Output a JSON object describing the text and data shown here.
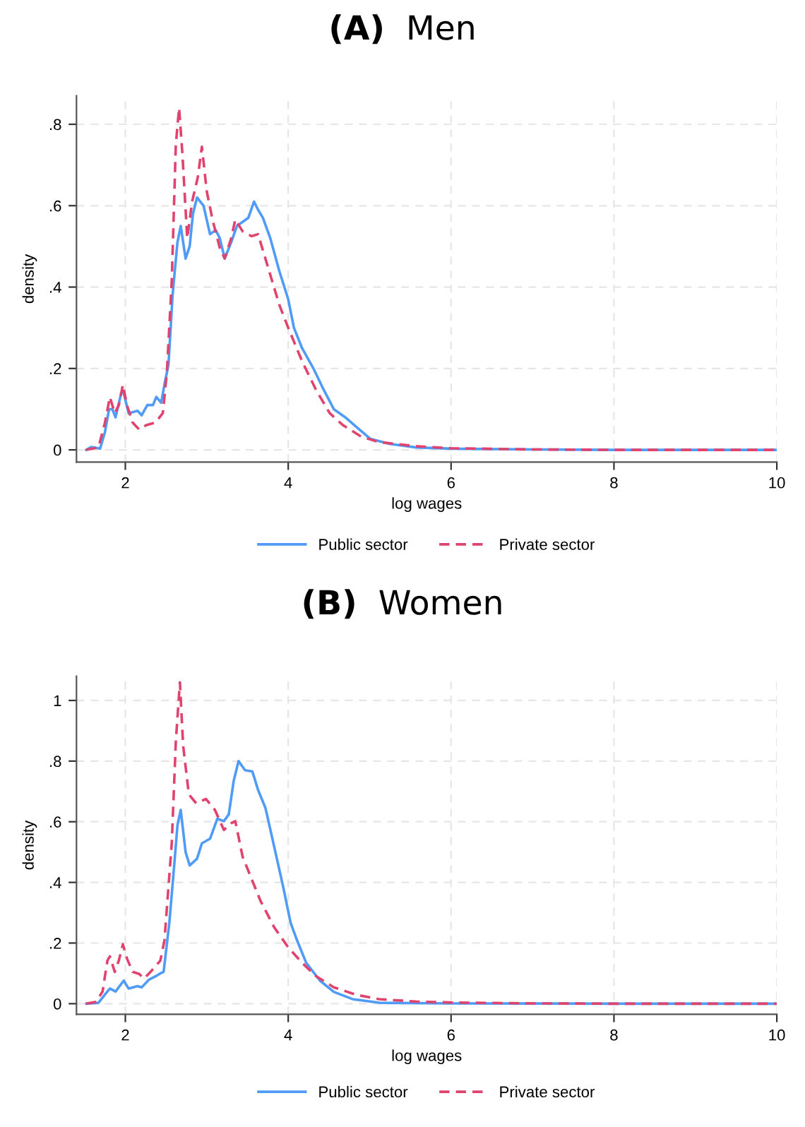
{
  "chart_data": [
    {
      "type": "line",
      "title": "(A) Men",
      "xlabel": "log wages",
      "ylabel": "density",
      "xlim": [
        1.4,
        10
      ],
      "ylim": [
        -0.03,
        0.87
      ],
      "xticks": [
        2,
        4,
        6,
        8,
        10
      ],
      "yticks": [
        {
          "value": 0,
          "label": "0"
        },
        {
          "value": 0.2,
          "label": ".2"
        },
        {
          "value": 0.4,
          "label": ".4"
        },
        {
          "value": 0.6,
          "label": ".6"
        },
        {
          "value": 0.8,
          "label": ".8"
        }
      ],
      "grid": true,
      "legend": "bottom",
      "series": [
        {
          "name": "Public sector",
          "color": "#4f9bf5",
          "line_style": "solid",
          "x": [
            1.52,
            1.58,
            1.69,
            1.75,
            1.8,
            1.84,
            1.88,
            1.95,
            1.98,
            2.04,
            2.15,
            2.2,
            2.27,
            2.34,
            2.38,
            2.44,
            2.48,
            2.53,
            2.58,
            2.64,
            2.68,
            2.74,
            2.79,
            2.83,
            2.88,
            2.96,
            3.04,
            3.11,
            3.16,
            3.22,
            3.3,
            3.37,
            3.44,
            3.51,
            3.58,
            3.63,
            3.69,
            3.78,
            3.89,
            4.0,
            4.07,
            4.17,
            4.31,
            4.42,
            4.56,
            4.7,
            4.84,
            5.01,
            5.24,
            5.57,
            6,
            7,
            8,
            10
          ],
          "values": [
            0,
            0.007,
            0.003,
            0.044,
            0.1,
            0.1,
            0.08,
            0.14,
            0.14,
            0.09,
            0.096,
            0.085,
            0.11,
            0.11,
            0.13,
            0.116,
            0.16,
            0.21,
            0.38,
            0.51,
            0.55,
            0.47,
            0.5,
            0.58,
            0.62,
            0.6,
            0.53,
            0.54,
            0.52,
            0.47,
            0.51,
            0.55,
            0.56,
            0.57,
            0.61,
            0.59,
            0.57,
            0.52,
            0.44,
            0.37,
            0.3,
            0.25,
            0.2,
            0.154,
            0.1,
            0.08,
            0.056,
            0.027,
            0.015,
            0.006,
            0.003,
            0.001,
            0,
            0
          ]
        },
        {
          "name": "Private sector",
          "color": "#e0436e",
          "line_style": "dashed",
          "x": [
            1.52,
            1.67,
            1.75,
            1.81,
            1.87,
            1.92,
            1.97,
            2.02,
            2.09,
            2.17,
            2.26,
            2.37,
            2.46,
            2.51,
            2.57,
            2.62,
            2.66,
            2.7,
            2.76,
            2.82,
            2.89,
            2.94,
            3.0,
            3.07,
            3.16,
            3.22,
            3.3,
            3.35,
            3.44,
            3.55,
            3.63,
            3.75,
            3.89,
            4.0,
            4.17,
            4.34,
            4.51,
            4.67,
            4.9,
            5.12,
            5.57,
            6,
            7,
            8,
            10
          ],
          "values": [
            0,
            0.006,
            0.067,
            0.13,
            0.09,
            0.11,
            0.16,
            0.11,
            0.067,
            0.05,
            0.061,
            0.067,
            0.09,
            0.19,
            0.415,
            0.75,
            0.84,
            0.73,
            0.52,
            0.61,
            0.67,
            0.745,
            0.635,
            0.566,
            0.496,
            0.47,
            0.52,
            0.566,
            0.537,
            0.525,
            0.53,
            0.45,
            0.357,
            0.3,
            0.218,
            0.148,
            0.09,
            0.061,
            0.032,
            0.019,
            0.009,
            0.004,
            0.001,
            0,
            0
          ]
        }
      ]
    },
    {
      "type": "line",
      "title": "(B) Women",
      "xlabel": "log wages",
      "ylabel": "density",
      "xlim": [
        1.4,
        10
      ],
      "ylim": [
        -0.035,
        1.08
      ],
      "xticks": [
        2,
        4,
        6,
        8,
        10
      ],
      "yticks": [
        {
          "value": 0,
          "label": "0"
        },
        {
          "value": 0.2,
          "label": ".2"
        },
        {
          "value": 0.4,
          "label": ".4"
        },
        {
          "value": 0.6,
          "label": ".6"
        },
        {
          "value": 0.8,
          "label": ".8"
        },
        {
          "value": 1,
          "label": "1"
        }
      ],
      "grid": true,
      "legend": "bottom",
      "series": [
        {
          "name": "Public sector",
          "color": "#4f9bf5",
          "line_style": "solid",
          "x": [
            1.52,
            1.67,
            1.75,
            1.81,
            1.88,
            1.98,
            2.04,
            2.15,
            2.2,
            2.29,
            2.37,
            2.43,
            2.47,
            2.54,
            2.6,
            2.64,
            2.68,
            2.74,
            2.79,
            2.88,
            2.94,
            3.04,
            3.13,
            3.21,
            3.27,
            3.33,
            3.39,
            3.47,
            3.56,
            3.63,
            3.72,
            3.83,
            3.94,
            4.03,
            4.11,
            4.22,
            4.39,
            4.56,
            4.79,
            5.12,
            6,
            8,
            10
          ],
          "values": [
            0,
            0.003,
            0.03,
            0.05,
            0.04,
            0.076,
            0.05,
            0.058,
            0.054,
            0.079,
            0.09,
            0.1,
            0.105,
            0.266,
            0.456,
            0.588,
            0.639,
            0.5,
            0.456,
            0.478,
            0.529,
            0.544,
            0.61,
            0.602,
            0.624,
            0.734,
            0.8,
            0.77,
            0.766,
            0.705,
            0.646,
            0.515,
            0.383,
            0.266,
            0.208,
            0.135,
            0.076,
            0.039,
            0.015,
            0.003,
            0.001,
            0,
            0
          ]
        },
        {
          "name": "Private sector",
          "color": "#e0436e",
          "line_style": "dashed",
          "x": [
            1.52,
            1.64,
            1.72,
            1.78,
            1.81,
            1.87,
            1.92,
            1.97,
            2.02,
            2.09,
            2.17,
            2.23,
            2.31,
            2.43,
            2.48,
            2.57,
            2.62,
            2.67,
            2.71,
            2.78,
            2.87,
            2.99,
            3.1,
            3.21,
            3.3,
            3.35,
            3.44,
            3.55,
            3.66,
            3.83,
            4.0,
            4.17,
            4.34,
            4.56,
            4.84,
            5.12,
            5.57,
            6,
            7,
            8,
            10
          ],
          "values": [
            0,
            0.006,
            0.04,
            0.142,
            0.156,
            0.105,
            0.142,
            0.196,
            0.149,
            0.105,
            0.098,
            0.083,
            0.105,
            0.142,
            0.208,
            0.529,
            0.865,
            1.06,
            0.851,
            0.69,
            0.661,
            0.675,
            0.639,
            0.573,
            0.595,
            0.602,
            0.485,
            0.412,
            0.339,
            0.251,
            0.186,
            0.135,
            0.091,
            0.054,
            0.029,
            0.015,
            0.007,
            0.004,
            0.001,
            0,
            0
          ]
        }
      ]
    }
  ]
}
